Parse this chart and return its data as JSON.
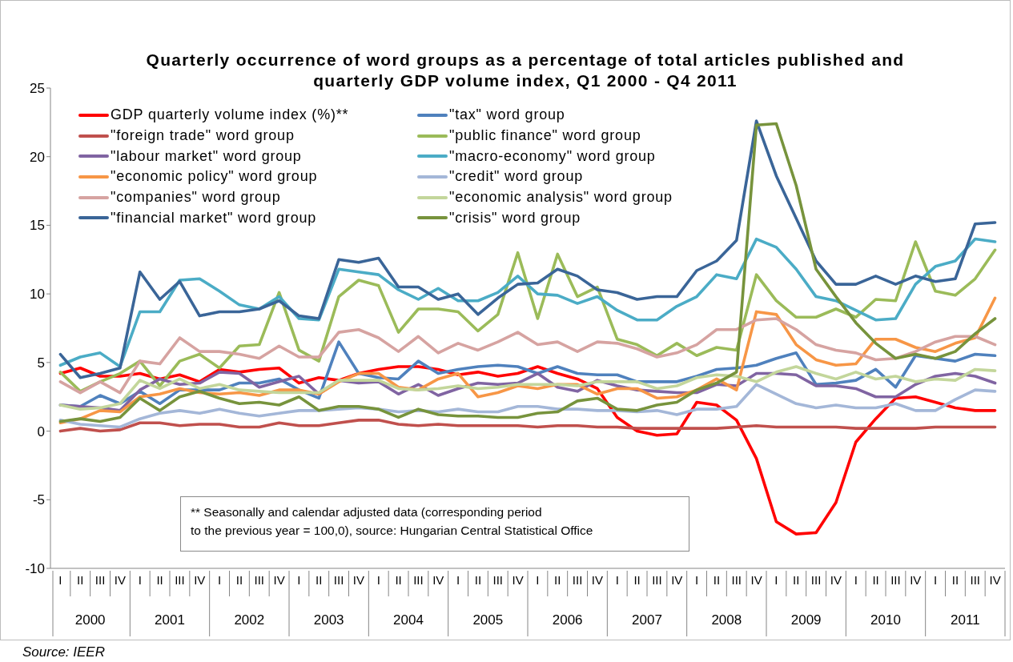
{
  "chart_data": {
    "type": "line",
    "title": "Quarterly occurrence of word groups as a percentage of total articles published and quarterly GDP volume index, Q1 2000 - Q4 2011",
    "categories": [
      "I",
      "II",
      "III",
      "IV",
      "I",
      "II",
      "III",
      "IV",
      "I",
      "II",
      "III",
      "IV",
      "I",
      "II",
      "III",
      "IV",
      "I",
      "II",
      "III",
      "IV",
      "I",
      "II",
      "III",
      "IV",
      "I",
      "II",
      "III",
      "IV",
      "I",
      "II",
      "III",
      "IV",
      "I",
      "II",
      "III",
      "IV",
      "I",
      "II",
      "III",
      "IV",
      "I",
      "II",
      "III",
      "IV",
      "I",
      "II",
      "III",
      "IV"
    ],
    "ylim": [
      -10,
      25
    ],
    "yticks": [
      -10,
      -5,
      0,
      5,
      10,
      15,
      20,
      25
    ],
    "legend": "top left",
    "marker": "none",
    "annotations": [
      "** Seasonally and calendar adjusted data (corresponding period\nto the previous year = 100,0), source: Hungarian Central Statistical Office",
      "Source: IEER",
      "2000",
      "2001",
      "2002",
      "2003",
      "2004",
      "2005",
      "2006",
      "2007",
      "2008",
      "2009",
      "2010",
      "2011"
    ],
    "series": [
      {
        "name": "GDP quarterly volume index (%)**",
        "color": "#ff0000",
        "values": [
          4.2,
          4.6,
          4.0,
          4.0,
          4.2,
          3.8,
          4.1,
          3.6,
          4.5,
          4.3,
          4.5,
          4.6,
          3.5,
          3.9,
          3.7,
          4.2,
          4.5,
          4.7,
          4.7,
          4.5,
          4.1,
          4.3,
          4.0,
          4.2,
          4.7,
          4.2,
          3.8,
          3.1,
          1.0,
          0.0,
          -0.3,
          -0.2,
          2.1,
          1.9,
          0.8,
          -2.0,
          -6.6,
          -7.5,
          -7.4,
          -5.2,
          -0.8,
          0.9,
          2.4,
          2.5,
          2.1,
          1.7,
          1.5,
          1.5
        ]
      },
      {
        "name": "\"tax\" word group",
        "color": "#4f81bd",
        "values": [
          1.9,
          1.8,
          2.6,
          2.0,
          2.9,
          2.0,
          3.0,
          3.0,
          3.0,
          3.5,
          3.5,
          3.8,
          3.0,
          2.4,
          6.5,
          4.2,
          3.9,
          3.8,
          5.1,
          4.2,
          4.5,
          4.7,
          4.8,
          4.7,
          4.2,
          4.7,
          4.2,
          4.1,
          4.1,
          3.6,
          3.6,
          3.6,
          4.0,
          4.5,
          4.6,
          4.8,
          5.3,
          5.7,
          3.4,
          3.5,
          3.7,
          4.5,
          3.2,
          5.5,
          5.3,
          5.1,
          5.6,
          5.5
        ]
      },
      {
        "name": "\"foreign trade\" word group",
        "color": "#c0504d",
        "values": [
          0.0,
          0.2,
          0.0,
          0.1,
          0.6,
          0.6,
          0.4,
          0.5,
          0.5,
          0.3,
          0.3,
          0.6,
          0.4,
          0.4,
          0.6,
          0.8,
          0.8,
          0.5,
          0.4,
          0.5,
          0.4,
          0.4,
          0.4,
          0.4,
          0.3,
          0.4,
          0.4,
          0.3,
          0.3,
          0.2,
          0.2,
          0.2,
          0.2,
          0.2,
          0.3,
          0.4,
          0.3,
          0.3,
          0.3,
          0.3,
          0.2,
          0.2,
          0.2,
          0.2,
          0.3,
          0.3,
          0.3,
          0.3
        ]
      },
      {
        "name": "\"public finance\" word group",
        "color": "#9bbb59",
        "values": [
          4.3,
          2.9,
          3.6,
          4.2,
          5.1,
          3.3,
          5.1,
          5.6,
          4.6,
          6.2,
          6.3,
          10.1,
          5.9,
          5.1,
          9.8,
          11.0,
          10.6,
          7.2,
          8.9,
          8.9,
          8.7,
          7.3,
          8.5,
          13.0,
          8.2,
          12.9,
          9.8,
          10.5,
          6.7,
          6.3,
          5.5,
          6.4,
          5.5,
          6.1,
          5.9,
          11.4,
          9.5,
          8.3,
          8.3,
          8.9,
          8.3,
          9.6,
          9.5,
          13.8,
          10.2,
          9.9,
          11.1,
          13.2
        ]
      },
      {
        "name": "\"labour market\" word group",
        "color": "#8064a2",
        "values": [
          1.9,
          1.8,
          1.7,
          1.5,
          3.0,
          3.8,
          3.4,
          3.5,
          4.3,
          4.2,
          3.2,
          3.6,
          4.0,
          2.7,
          3.7,
          3.5,
          3.6,
          2.7,
          3.4,
          2.6,
          3.1,
          3.5,
          3.4,
          3.5,
          4.2,
          3.2,
          2.9,
          3.7,
          3.3,
          3.0,
          2.9,
          2.8,
          2.8,
          3.4,
          3.3,
          4.2,
          4.2,
          4.1,
          3.3,
          3.3,
          3.1,
          2.5,
          2.5,
          3.4,
          4.0,
          4.2,
          4.0,
          3.5
        ]
      },
      {
        "name": "\"macro-economy\" word group",
        "color": "#4bacc6",
        "values": [
          4.8,
          5.4,
          5.7,
          4.7,
          8.7,
          8.7,
          11.0,
          11.1,
          10.2,
          9.2,
          8.9,
          9.8,
          8.2,
          8.1,
          11.8,
          11.6,
          11.4,
          10.3,
          9.6,
          10.4,
          9.5,
          9.5,
          10.1,
          11.3,
          10.0,
          9.9,
          9.3,
          9.8,
          8.8,
          8.1,
          8.1,
          9.1,
          9.8,
          11.4,
          11.1,
          14.0,
          13.4,
          11.8,
          9.8,
          9.5,
          8.8,
          8.1,
          8.2,
          10.7,
          12.0,
          12.4,
          14.0,
          13.8
        ]
      },
      {
        "name": "\"economic policy\" word group",
        "color": "#f79646",
        "values": [
          0.6,
          0.9,
          1.5,
          1.4,
          2.5,
          2.7,
          3.1,
          2.8,
          2.7,
          2.8,
          2.6,
          3.0,
          3.0,
          2.7,
          3.6,
          4.2,
          4.2,
          3.2,
          3.0,
          3.8,
          4.2,
          2.5,
          2.8,
          3.3,
          3.1,
          3.4,
          3.4,
          2.7,
          3.1,
          3.1,
          2.4,
          2.5,
          3.0,
          3.8,
          3.0,
          8.7,
          8.5,
          6.3,
          5.2,
          4.8,
          4.9,
          6.7,
          6.7,
          6.1,
          5.8,
          6.4,
          6.8,
          9.7
        ]
      },
      {
        "name": "\"credit\" word group",
        "color": "#a4b7d8",
        "values": [
          0.8,
          0.5,
          0.4,
          0.3,
          0.9,
          1.3,
          1.5,
          1.3,
          1.6,
          1.3,
          1.1,
          1.3,
          1.5,
          1.5,
          1.6,
          1.7,
          1.6,
          1.4,
          1.5,
          1.4,
          1.6,
          1.4,
          1.4,
          1.8,
          1.8,
          1.6,
          1.6,
          1.5,
          1.5,
          1.4,
          1.5,
          1.2,
          1.6,
          1.6,
          1.8,
          3.4,
          2.7,
          2.0,
          1.7,
          1.9,
          1.7,
          1.7,
          2.0,
          1.5,
          1.5,
          2.3,
          3.0,
          2.9
        ]
      },
      {
        "name": "\"companies\" word group",
        "color": "#d6a3a1",
        "values": [
          3.6,
          2.8,
          3.6,
          2.8,
          5.1,
          4.9,
          6.8,
          5.8,
          5.8,
          5.6,
          5.3,
          6.2,
          5.4,
          5.4,
          7.2,
          7.4,
          6.8,
          5.8,
          6.9,
          5.7,
          6.4,
          5.9,
          6.5,
          7.2,
          6.3,
          6.5,
          5.8,
          6.5,
          6.4,
          6.0,
          5.4,
          5.7,
          6.3,
          7.4,
          7.4,
          8.1,
          8.2,
          7.4,
          6.3,
          5.9,
          5.7,
          5.2,
          5.3,
          5.8,
          6.5,
          6.9,
          6.9,
          6.3
        ]
      },
      {
        "name": "\"economic analysis\" word group",
        "color": "#c3d69b",
        "values": [
          1.9,
          1.6,
          1.7,
          2.0,
          3.7,
          3.1,
          3.8,
          3.1,
          3.4,
          3.0,
          2.9,
          2.8,
          2.8,
          2.8,
          3.7,
          3.7,
          3.7,
          3.1,
          3.0,
          3.1,
          3.3,
          3.1,
          3.2,
          3.4,
          3.4,
          3.4,
          3.3,
          3.6,
          3.6,
          3.6,
          3.1,
          3.3,
          3.9,
          4.1,
          4.0,
          3.6,
          4.3,
          4.7,
          4.2,
          3.8,
          4.3,
          3.8,
          4.0,
          3.6,
          3.8,
          3.7,
          4.5,
          4.4
        ]
      },
      {
        "name": "\"financial market\" word group",
        "color": "#3a6598",
        "values": [
          5.6,
          3.9,
          4.2,
          4.6,
          11.6,
          9.6,
          10.9,
          8.4,
          8.7,
          8.7,
          8.9,
          9.5,
          8.4,
          8.2,
          12.5,
          12.3,
          12.6,
          10.5,
          10.5,
          9.6,
          10.0,
          8.5,
          9.7,
          10.7,
          10.8,
          11.8,
          11.3,
          10.3,
          10.1,
          9.6,
          9.8,
          9.8,
          11.7,
          12.4,
          13.9,
          22.6,
          18.6,
          15.5,
          12.4,
          10.7,
          10.7,
          11.3,
          10.7,
          11.3,
          10.9,
          11.1,
          15.1,
          15.2
        ]
      },
      {
        "name": "\"crisis\" word group",
        "color": "#77933c",
        "values": [
          0.7,
          0.9,
          0.7,
          1.0,
          2.4,
          1.5,
          2.5,
          2.9,
          2.4,
          2.0,
          2.1,
          1.9,
          2.5,
          1.5,
          1.8,
          1.8,
          1.6,
          1.0,
          1.6,
          1.2,
          1.1,
          1.1,
          1.0,
          1.0,
          1.3,
          1.4,
          2.2,
          2.4,
          1.6,
          1.5,
          1.9,
          2.1,
          3.0,
          3.5,
          4.3,
          22.3,
          22.4,
          17.9,
          11.8,
          9.8,
          7.9,
          6.4,
          5.3,
          5.6,
          5.3,
          5.8,
          7.1,
          8.2
        ]
      }
    ]
  }
}
